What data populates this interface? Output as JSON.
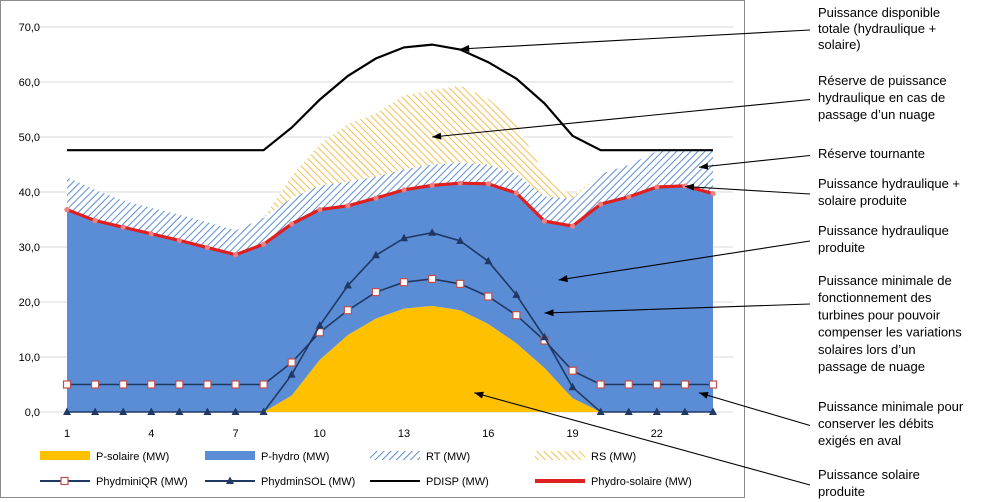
{
  "chart_data": {
    "type": "area",
    "x": [
      1,
      2,
      3,
      4,
      5,
      6,
      7,
      8,
      9,
      10,
      11,
      12,
      13,
      14,
      15,
      16,
      17,
      18,
      19,
      20,
      21,
      22,
      23,
      24
    ],
    "xticks": [
      "1",
      "4",
      "7",
      "10",
      "13",
      "16",
      "19",
      "22"
    ],
    "xtick_values": [
      1,
      4,
      7,
      10,
      13,
      16,
      19,
      22
    ],
    "ylim": [
      0,
      70
    ],
    "yticks": [
      "0,0",
      "10,0",
      "20,0",
      "30,0",
      "40,0",
      "50,0",
      "60,0",
      "70,0"
    ],
    "ytick_values": [
      0,
      10,
      20,
      30,
      40,
      50,
      60,
      70
    ],
    "grid": true,
    "legend_position": "bottom",
    "series": [
      {
        "name": "P-solaire (MW)",
        "kind": "area",
        "color": "#FFC000",
        "values": [
          0,
          0,
          0,
          0,
          0,
          0,
          0,
          0,
          3,
          9.5,
          14,
          17,
          18.8,
          19.3,
          18.5,
          16,
          12.5,
          8,
          2.5,
          0,
          0,
          0,
          0,
          0
        ]
      },
      {
        "name": "P-hydro (MW)",
        "kind": "area",
        "color": "#5B8DD6",
        "values": [
          36.8,
          34.8,
          33.6,
          32.4,
          31.2,
          29.9,
          28.6,
          30.5,
          31.2,
          27.3,
          23.5,
          21.9,
          21.6,
          21.9,
          23.1,
          25.5,
          27.3,
          26.7,
          31.3,
          37.8,
          39.1,
          40.9,
          41.1,
          39.7
        ]
      },
      {
        "name": "RT (MW)",
        "kind": "hatch-area",
        "color": "#5B8DD6",
        "values": [
          5.9,
          5.6,
          4.8,
          4.7,
          4.7,
          4.6,
          4.4,
          4.8,
          4.7,
          4.4,
          4.4,
          3.9,
          3.7,
          3.8,
          3.7,
          3.5,
          3.5,
          4.5,
          5.0,
          5.5,
          5.8,
          6.5,
          6.5,
          8.1
        ]
      },
      {
        "name": "RS (MW)",
        "kind": "hatch-area",
        "color": "#F2C14E",
        "values": [
          0,
          0,
          0,
          0,
          0,
          0,
          0,
          0,
          4,
          7.5,
          10.5,
          11.5,
          13.5,
          13.5,
          14,
          12,
          9,
          4,
          0.5,
          0,
          0,
          0,
          0,
          0
        ]
      },
      {
        "name": "PhydminiQR (MW)",
        "kind": "line",
        "color": "#1F3864",
        "marker": "square",
        "values": [
          5,
          5,
          5,
          5,
          5,
          5,
          5,
          5,
          9,
          14.5,
          18.5,
          21.8,
          23.6,
          24.2,
          23.3,
          21,
          17.6,
          13,
          7.5,
          5,
          5,
          5,
          5,
          5
        ]
      },
      {
        "name": "PhydminSOL (MW)",
        "kind": "line",
        "color": "#1F3864",
        "marker": "triangle",
        "values": [
          0,
          0,
          0,
          0,
          0,
          0,
          0,
          0,
          6.8,
          15.7,
          23,
          28.5,
          31.6,
          32.6,
          31.1,
          27.4,
          21.3,
          13.6,
          4.5,
          0,
          0,
          0,
          0,
          0
        ]
      },
      {
        "name": "PDISP (MW)",
        "kind": "line",
        "color": "#000000",
        "values": [
          47.6,
          47.6,
          47.6,
          47.6,
          47.6,
          47.6,
          47.6,
          47.6,
          51.7,
          56.8,
          61.1,
          64.3,
          66.3,
          66.8,
          65.9,
          63.6,
          60.6,
          56.1,
          50.2,
          47.6,
          47.6,
          47.6,
          47.6,
          47.6
        ]
      },
      {
        "name": "Phydro-solaire (MW)",
        "kind": "line",
        "color": "#E02020",
        "values": [
          36.8,
          34.8,
          33.6,
          32.4,
          31.2,
          29.9,
          28.6,
          30.5,
          34.2,
          36.8,
          37.5,
          38.9,
          40.4,
          41.2,
          41.6,
          41.5,
          39.8,
          34.7,
          33.8,
          37.8,
          39.1,
          40.9,
          41.1,
          39.7
        ]
      }
    ],
    "annotations": [
      {
        "text": [
          "Puissance disponible",
          "totale (hydraulique +",
          "solaire)"
        ],
        "x": 15,
        "y": 66
      },
      {
        "text": [
          "Réserve de puissance",
          "hydraulique en cas de",
          "passage d’un nuage"
        ],
        "x": 14,
        "y": 50
      },
      {
        "text": [
          "Réserve tournante"
        ],
        "x": 23.5,
        "y": 44.5
      },
      {
        "text": [
          "Puissance hydraulique +",
          "solaire produite"
        ],
        "x": 23,
        "y": 41
      },
      {
        "text": [
          "Puissance hydraulique",
          "produite"
        ],
        "x": 18.5,
        "y": 24
      },
      {
        "text": [
          "Puissance minimale de",
          "fonctionnement des",
          "turbines pour pouvoir",
          "compenser les variations",
          "solaires lors d’un",
          "passage de nuage"
        ],
        "x": 18,
        "y": 18
      },
      {
        "text": [
          "Puissance minimale pour",
          "conserver les débits",
          "exigés en aval"
        ],
        "x": 23.5,
        "y": 3.5
      },
      {
        "text": [
          "Puissance solaire",
          "produite"
        ],
        "x": 15.5,
        "y": 3.5
      }
    ]
  }
}
